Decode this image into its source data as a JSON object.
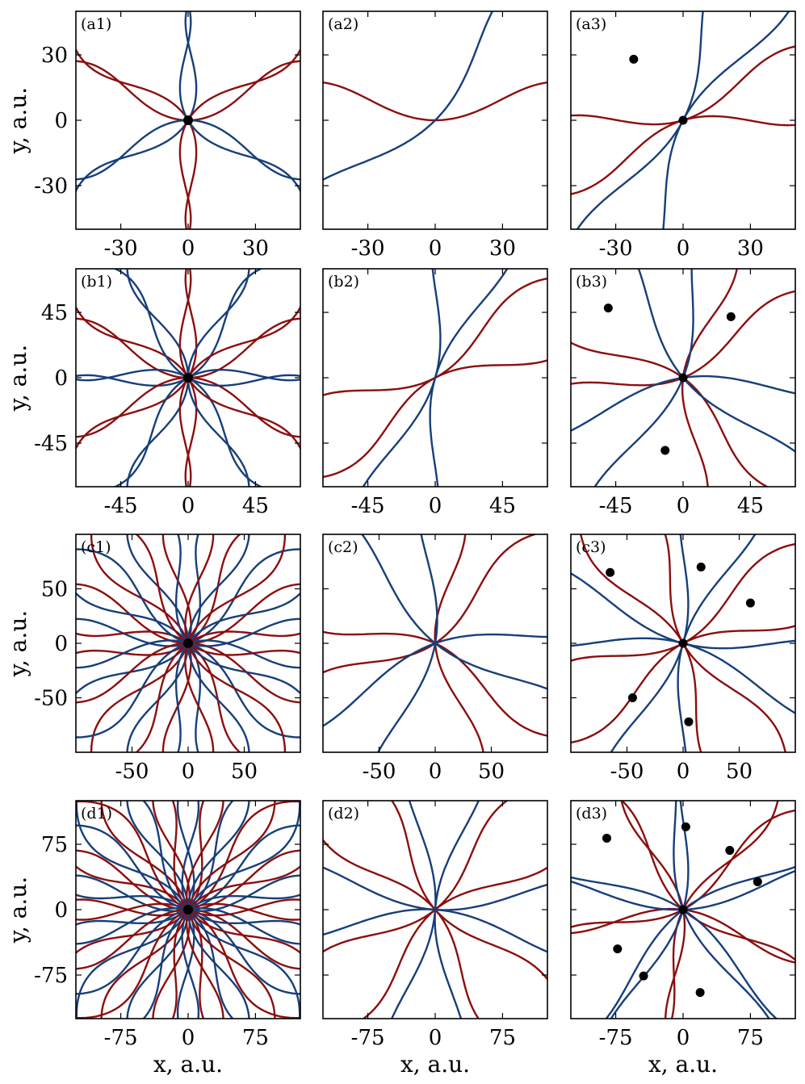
{
  "colors": {
    "red_family": "#8b0f0f",
    "blue_family": "#173f7a",
    "point": "#000000"
  },
  "axis_labels": {
    "x": "x, a.u.",
    "y": "y, a.u."
  },
  "chart_data": [
    {
      "id": "a1",
      "type": "scatter",
      "panel_label": "(a1)",
      "xlim": [
        -50,
        50
      ],
      "ylim": [
        -50,
        50
      ],
      "xticks": [
        "-30",
        "0",
        "30"
      ],
      "yticks": [
        "30",
        "0",
        "-30"
      ],
      "arms": 3,
      "phase": 0,
      "points": [
        [
          0,
          0
        ]
      ]
    },
    {
      "id": "a2",
      "type": "scatter",
      "panel_label": "(a2)",
      "xlim": [
        -50,
        50
      ],
      "ylim": [
        -50,
        50
      ],
      "xticks": [
        "-30",
        "0",
        "30"
      ],
      "yticks": [],
      "arms": 1,
      "phase": 0,
      "points": []
    },
    {
      "id": "a3",
      "type": "scatter",
      "panel_label": "(a3)",
      "xlim": [
        -50,
        50
      ],
      "ylim": [
        -50,
        50
      ],
      "xticks": [
        "-30",
        "0",
        "30"
      ],
      "yticks": [],
      "arms": 2,
      "phase": 0.3,
      "points": [
        [
          0,
          0
        ],
        [
          -22,
          28
        ]
      ]
    },
    {
      "id": "b1",
      "type": "scatter",
      "panel_label": "(b1)",
      "xlim": [
        -75,
        75
      ],
      "ylim": [
        -75,
        75
      ],
      "xticks": [
        "-45",
        "0",
        "45"
      ],
      "yticks": [
        "45",
        "0",
        "-45"
      ],
      "arms": 6,
      "phase": 0,
      "points": [
        [
          0,
          0
        ]
      ]
    },
    {
      "id": "b2",
      "type": "scatter",
      "panel_label": "(b2)",
      "xlim": [
        -75,
        75
      ],
      "ylim": [
        -75,
        75
      ],
      "xticks": [
        "-45",
        "0",
        "45"
      ],
      "yticks": [],
      "arms": 2,
      "phase": 0.5,
      "points": []
    },
    {
      "id": "b3",
      "type": "scatter",
      "panel_label": "(b3)",
      "xlim": [
        -75,
        75
      ],
      "ylim": [
        -75,
        75
      ],
      "xticks": [
        "-45",
        "0",
        "45"
      ],
      "yticks": [],
      "arms": 3,
      "phase": 0.4,
      "points": [
        [
          0,
          0
        ],
        [
          -50,
          48
        ],
        [
          32,
          42
        ],
        [
          -12,
          -50
        ]
      ]
    },
    {
      "id": "c1",
      "type": "scatter",
      "panel_label": "(c1)",
      "xlim": [
        -100,
        100
      ],
      "ylim": [
        -100,
        100
      ],
      "xticks": [
        "-50",
        "0",
        "50"
      ],
      "yticks": [
        "50",
        "0",
        "-50"
      ],
      "arms": 10,
      "phase": 0,
      "points": [
        [
          0,
          0
        ]
      ]
    },
    {
      "id": "c2",
      "type": "scatter",
      "panel_label": "(c2)",
      "xlim": [
        -100,
        100
      ],
      "ylim": [
        -100,
        100
      ],
      "xticks": [
        "-50",
        "0",
        "50"
      ],
      "yticks": [],
      "arms": 3,
      "phase": 0.6,
      "points": []
    },
    {
      "id": "c3",
      "type": "scatter",
      "panel_label": "(c3)",
      "xlim": [
        -100,
        100
      ],
      "ylim": [
        -100,
        100
      ],
      "xticks": [
        "-50",
        "0",
        "50"
      ],
      "yticks": [],
      "arms": 4,
      "phase": 0.5,
      "points": [
        [
          0,
          0
        ],
        [
          -65,
          65
        ],
        [
          16,
          70
        ],
        [
          60,
          37
        ],
        [
          -45,
          -50
        ],
        [
          5,
          -72
        ]
      ]
    },
    {
      "id": "d1",
      "type": "scatter",
      "panel_label": "(d1)",
      "xlim": [
        -125,
        125
      ],
      "ylim": [
        -125,
        125
      ],
      "xticks": [
        "-75",
        "0",
        "75"
      ],
      "yticks": [
        "75",
        "0",
        "-75"
      ],
      "arms": 14,
      "phase": 0,
      "points": [
        [
          0,
          0
        ]
      ]
    },
    {
      "id": "d2",
      "type": "scatter",
      "panel_label": "(d2)",
      "xlim": [
        -125,
        125
      ],
      "ylim": [
        -125,
        125
      ],
      "xticks": [
        "-75",
        "0",
        "75"
      ],
      "yticks": [],
      "arms": 4,
      "phase": 0.7,
      "points": []
    },
    {
      "id": "d3",
      "type": "scatter",
      "panel_label": "(d3)",
      "xlim": [
        -125,
        125
      ],
      "ylim": [
        -125,
        125
      ],
      "xticks": [
        "-75",
        "0",
        "75"
      ],
      "yticks": [],
      "arms": 5,
      "phase": 0.5,
      "points": [
        [
          0,
          0
        ],
        [
          -85,
          82
        ],
        [
          3,
          95
        ],
        [
          52,
          68
        ],
        [
          83,
          32
        ],
        [
          -73,
          -45
        ],
        [
          -44,
          -76
        ],
        [
          19,
          -95
        ]
      ]
    }
  ]
}
